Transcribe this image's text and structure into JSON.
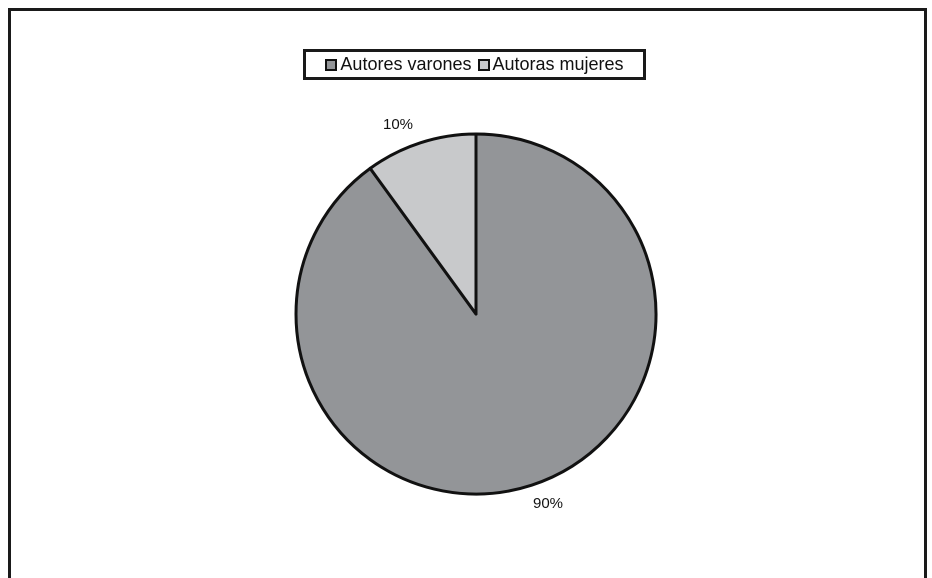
{
  "chart_data": {
    "type": "pie",
    "title": "",
    "legend_placement": "top",
    "slices": [
      {
        "name": "Autores varones",
        "value": 90,
        "label": "90%",
        "color": "#939598"
      },
      {
        "name": "Autoras mujeres",
        "value": 10,
        "label": "10%",
        "color": "#c8c9cb"
      }
    ]
  }
}
